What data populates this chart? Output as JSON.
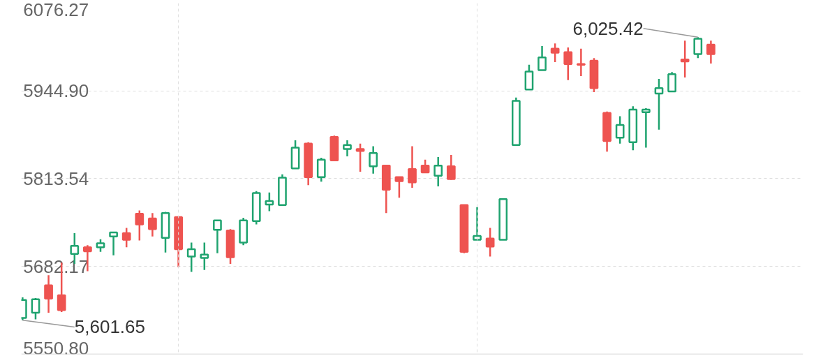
{
  "chart_data": {
    "type": "candlestick",
    "categories": [
      null,
      null,
      null,
      null,
      null,
      null,
      null,
      null,
      null,
      null,
      null,
      null,
      null,
      null,
      null,
      null,
      null,
      null,
      null,
      null,
      null,
      null,
      null,
      null,
      null,
      null,
      null,
      null,
      null,
      null,
      null,
      null,
      null,
      null,
      null,
      null,
      null,
      null,
      null,
      null,
      null,
      null,
      null,
      null,
      null,
      null,
      null,
      null,
      null,
      null,
      null,
      null,
      null,
      null
    ],
    "ohlc": [
      [
        5605,
        5636,
        5601.65,
        5632
      ],
      [
        5613,
        5635,
        5603,
        5633
      ],
      [
        5654,
        5669,
        5613,
        5634
      ],
      [
        5639,
        5688,
        5614,
        5617
      ],
      [
        5701,
        5732,
        5686,
        5713
      ],
      [
        5711,
        5714,
        5675,
        5705
      ],
      [
        5711,
        5723,
        5704,
        5717
      ],
      [
        5727,
        5734,
        5699,
        5733
      ],
      [
        5732,
        5740,
        5711,
        5722
      ],
      [
        5761,
        5766,
        5721,
        5745
      ],
      [
        5754,
        5762,
        5727,
        5738
      ],
      [
        5725,
        5764,
        5703,
        5762
      ],
      [
        5756,
        5757,
        5681,
        5708
      ],
      [
        5697,
        5718,
        5674,
        5708
      ],
      [
        5695,
        5718,
        5677,
        5700
      ],
      [
        5737,
        5752,
        5702,
        5751
      ],
      [
        5736,
        5738,
        5686,
        5696
      ],
      [
        5718,
        5755,
        5714,
        5751
      ],
      [
        5750,
        5795,
        5745,
        5792
      ],
      [
        5775,
        5793,
        5765,
        5780
      ],
      [
        5774,
        5820,
        5774,
        5815
      ],
      [
        5829,
        5871,
        5829,
        5860
      ],
      [
        5866,
        5868,
        5804,
        5816
      ],
      [
        5816,
        5845,
        5809,
        5842
      ],
      [
        5876,
        5878,
        5841,
        5841
      ],
      [
        5858,
        5871,
        5847,
        5864
      ],
      [
        5858,
        5866,
        5824,
        5855
      ],
      [
        5832,
        5862,
        5821,
        5852
      ],
      [
        5833,
        5833,
        5762,
        5797
      ],
      [
        5816,
        5816,
        5785,
        5810
      ],
      [
        5828,
        5862,
        5800,
        5808
      ],
      [
        5833,
        5842,
        5823,
        5823
      ],
      [
        5818,
        5846,
        5802,
        5833
      ],
      [
        5832,
        5849,
        5812,
        5813
      ],
      [
        5774,
        5774,
        5702,
        5704
      ],
      [
        5722,
        5771,
        5722,
        5728
      ],
      [
        5724,
        5740,
        5697,
        5712
      ],
      [
        5722,
        5783,
        5722,
        5783
      ],
      [
        5864,
        5935,
        5864,
        5930
      ],
      [
        5947,
        5984,
        5947,
        5974
      ],
      [
        5976,
        6012,
        5976,
        5995
      ],
      [
        6008,
        6016,
        5988,
        6002
      ],
      [
        6003,
        6010,
        5961,
        5985
      ],
      [
        5985,
        6008,
        5967,
        5984
      ],
      [
        5990,
        5994,
        5943,
        5949
      ],
      [
        5912,
        5914,
        5854,
        5870
      ],
      [
        5875,
        5907,
        5866,
        5894
      ],
      [
        5868,
        5922,
        5856,
        5917
      ],
      [
        5913,
        5919,
        5860,
        5917
      ],
      [
        5941,
        5963,
        5887,
        5949
      ],
      [
        5944,
        5973,
        5944,
        5970
      ],
      [
        5992,
        6020,
        5965,
        5989
      ],
      [
        6000,
        6025.42,
        5994,
        6023
      ],
      [
        6014,
        6020,
        5986,
        6000
      ]
    ],
    "colors": [
      "#1fa36f",
      "#1fa36f",
      "#ee5350",
      "#ee5350",
      "#1fa36f",
      "#ee5350",
      "#1fa36f",
      "#1fa36f",
      "#ee5350",
      "#ee5350",
      "#ee5350",
      "#1fa36f",
      "#ee5350",
      "#1fa36f",
      "#1fa36f",
      "#1fa36f",
      "#ee5350",
      "#1fa36f",
      "#1fa36f",
      "#1fa36f",
      "#1fa36f",
      "#1fa36f",
      "#ee5350",
      "#1fa36f",
      "#ee5350",
      "#1fa36f",
      "#ee5350",
      "#1fa36f",
      "#ee5350",
      "#ee5350",
      "#ee5350",
      "#ee5350",
      "#1fa36f",
      "#ee5350",
      "#ee5350",
      "#1fa36f",
      "#ee5350",
      "#1fa36f",
      "#1fa36f",
      "#1fa36f",
      "#1fa36f",
      "#ee5350",
      "#ee5350",
      "#ee5350",
      "#ee5350",
      "#ee5350",
      "#1fa36f",
      "#1fa36f",
      "#1fa36f",
      "#1fa36f",
      "#1fa36f",
      "#ee5350",
      "#1fa36f",
      "#ee5350"
    ],
    "ylim": [
      5550.8,
      6076.27
    ],
    "yticks": [
      {
        "value": 5550.8,
        "label": "5550.80"
      },
      5682.17,
      5813.54,
      {
        "value": 5944.9,
        "label": "5944.90"
      },
      6076.27
    ],
    "grid": "y",
    "annotations": [
      "6,025.42",
      "5,601.65"
    ]
  }
}
